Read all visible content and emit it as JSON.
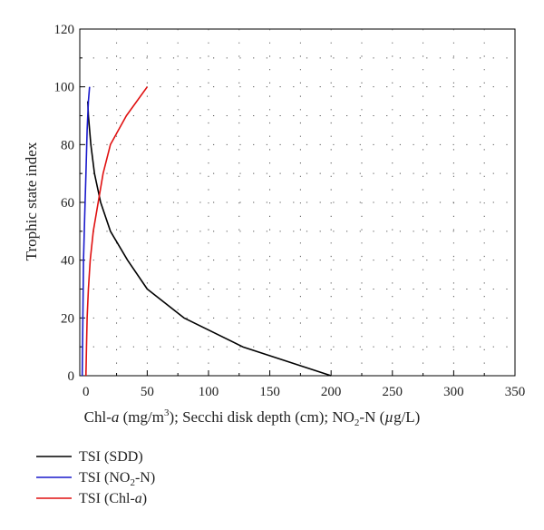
{
  "chart_data": {
    "type": "line",
    "xlabel": "Chl-a (mg/m3); Secchi disk depth (cm); NO2-N (µg/L)",
    "ylabel": "Trophic state index",
    "xlim": [
      -5,
      350
    ],
    "ylim": [
      0,
      120
    ],
    "x_ticks": [
      0,
      50,
      100,
      150,
      200,
      250,
      300,
      350
    ],
    "y_ticks": [
      0,
      20,
      40,
      60,
      80,
      100,
      120
    ],
    "grid": "dotted",
    "legend_position": "below-left",
    "series": [
      {
        "name": "TSI (SDD)",
        "color": "#000000",
        "points": [
          [
            200,
            0
          ],
          [
            128,
            10
          ],
          [
            80,
            20
          ],
          [
            50,
            30
          ],
          [
            34,
            40
          ],
          [
            20,
            50
          ],
          [
            12,
            60
          ],
          [
            7,
            70
          ],
          [
            4,
            80
          ],
          [
            2,
            90
          ],
          [
            1.5,
            95
          ]
        ]
      },
      {
        "name": "TSI (NO2-N)",
        "color": "#1a1acc",
        "points": [
          [
            -3,
            0
          ],
          [
            -2.5,
            20
          ],
          [
            -2,
            40
          ],
          [
            -1,
            55
          ],
          [
            0,
            70
          ],
          [
            1,
            85
          ],
          [
            2,
            95
          ],
          [
            3,
            100
          ]
        ]
      },
      {
        "name": "TSI (Chl-a)",
        "color": "#e01010",
        "points": [
          [
            0,
            0
          ],
          [
            0.5,
            10
          ],
          [
            1,
            20
          ],
          [
            2,
            30
          ],
          [
            3.5,
            40
          ],
          [
            6,
            50
          ],
          [
            10,
            60
          ],
          [
            14,
            70
          ],
          [
            20,
            80
          ],
          [
            33,
            90
          ],
          [
            50,
            100
          ]
        ]
      }
    ]
  }
}
